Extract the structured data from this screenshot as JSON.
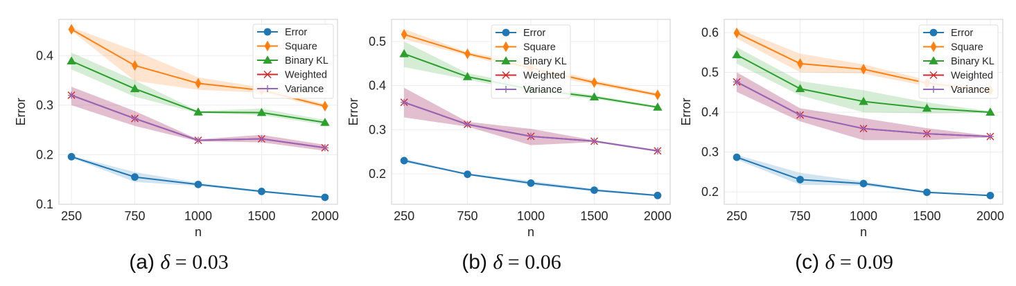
{
  "figure": {
    "panels": [
      {
        "id": "a",
        "caption_prefix": "(a)",
        "caption_symbol": "δ",
        "caption_eq": "= 0.03"
      },
      {
        "id": "b",
        "caption_prefix": "(b)",
        "caption_symbol": "δ",
        "caption_eq": "= 0.06"
      },
      {
        "id": "c",
        "caption_prefix": "(c)",
        "caption_symbol": "δ",
        "caption_eq": "= 0.09"
      }
    ]
  },
  "series_style": {
    "Error": {
      "color": "#1f77b4",
      "marker": "circle"
    },
    "Square": {
      "color": "#ff7f0e",
      "marker": "thin-diamond"
    },
    "Binary KL": {
      "color": "#2ca02c",
      "marker": "triangle"
    },
    "Weighted": {
      "color": "#d62728",
      "marker": "x"
    },
    "Variance": {
      "color": "#9467bd",
      "marker": "plus"
    }
  },
  "chart_data": [
    {
      "type": "line",
      "title": "(a) δ = 0.03",
      "xlabel": "n",
      "ylabel": "Error",
      "categories": [
        "250",
        "750",
        "1000",
        "1500",
        "2000"
      ],
      "ylim": [
        0.1,
        0.473
      ],
      "yticks": [
        0.1,
        0.2,
        0.3,
        0.4
      ],
      "ytick_labels": [
        "0.1",
        "0.2",
        "0.3",
        "0.4"
      ],
      "grid": true,
      "legend": {
        "placement": "top-right",
        "entries": [
          "Error",
          "Square",
          "Binary KL",
          "Weighted",
          "Variance"
        ]
      },
      "series": [
        {
          "name": "Error",
          "values": [
            0.196,
            0.155,
            0.14,
            0.126,
            0.114
          ],
          "band_low": [
            0.194,
            0.145,
            0.137,
            0.124,
            0.112
          ],
          "band_high": [
            0.198,
            0.165,
            0.143,
            0.128,
            0.116
          ]
        },
        {
          "name": "Square",
          "values": [
            0.453,
            0.38,
            0.344,
            0.33,
            0.298
          ],
          "band_low": [
            0.45,
            0.349,
            0.331,
            0.325,
            0.294
          ],
          "band_high": [
            0.457,
            0.41,
            0.356,
            0.336,
            0.302
          ]
        },
        {
          "name": "Binary KL",
          "values": [
            0.389,
            0.333,
            0.286,
            0.285,
            0.265
          ],
          "band_low": [
            0.372,
            0.317,
            0.284,
            0.28,
            0.26
          ],
          "band_high": [
            0.406,
            0.35,
            0.288,
            0.293,
            0.27
          ]
        },
        {
          "name": "Weighted",
          "values": [
            0.32,
            0.273,
            0.229,
            0.232,
            0.214
          ],
          "band_low": [
            0.3,
            0.258,
            0.227,
            0.225,
            0.208
          ],
          "band_high": [
            0.337,
            0.288,
            0.231,
            0.24,
            0.22
          ]
        },
        {
          "name": "Variance",
          "values": [
            0.32,
            0.273,
            0.229,
            0.232,
            0.214
          ],
          "band_low": [
            0.3,
            0.258,
            0.227,
            0.225,
            0.208
          ],
          "band_high": [
            0.337,
            0.288,
            0.231,
            0.24,
            0.22
          ]
        }
      ]
    },
    {
      "type": "line",
      "title": "(b) δ = 0.06",
      "xlabel": "n",
      "ylabel": "Error",
      "categories": [
        "250",
        "750",
        "1000",
        "1500",
        "2000"
      ],
      "ylim": [
        0.131,
        0.55
      ],
      "yticks": [
        0.2,
        0.3,
        0.4,
        0.5
      ],
      "ytick_labels": [
        "0.2",
        "0.3",
        "0.4",
        "0.5"
      ],
      "grid": true,
      "legend": {
        "placement": "top-center",
        "entries": [
          "Error",
          "Square",
          "Binary KL",
          "Weighted",
          "Variance"
        ]
      },
      "series": [
        {
          "name": "Error",
          "values": [
            0.23,
            0.199,
            0.179,
            0.163,
            0.151
          ],
          "band_low": [
            0.227,
            0.197,
            0.175,
            0.16,
            0.149
          ],
          "band_high": [
            0.234,
            0.201,
            0.184,
            0.166,
            0.153
          ]
        },
        {
          "name": "Square",
          "values": [
            0.516,
            0.472,
            0.44,
            0.407,
            0.379
          ],
          "band_low": [
            0.505,
            0.468,
            0.43,
            0.402,
            0.375
          ],
          "band_high": [
            0.528,
            0.476,
            0.45,
            0.412,
            0.383
          ]
        },
        {
          "name": "Binary KL",
          "values": [
            0.472,
            0.42,
            0.392,
            0.374,
            0.351
          ],
          "band_low": [
            0.442,
            0.414,
            0.384,
            0.37,
            0.348
          ],
          "band_high": [
            0.5,
            0.428,
            0.4,
            0.378,
            0.354
          ]
        },
        {
          "name": "Weighted",
          "values": [
            0.362,
            0.312,
            0.285,
            0.274,
            0.252
          ],
          "band_low": [
            0.328,
            0.307,
            0.265,
            0.272,
            0.25
          ],
          "band_high": [
            0.395,
            0.318,
            0.302,
            0.276,
            0.254
          ]
        },
        {
          "name": "Variance",
          "values": [
            0.362,
            0.312,
            0.285,
            0.274,
            0.252
          ],
          "band_low": [
            0.328,
            0.307,
            0.265,
            0.272,
            0.25
          ],
          "band_high": [
            0.395,
            0.318,
            0.302,
            0.276,
            0.254
          ]
        }
      ]
    },
    {
      "type": "line",
      "title": "(c) δ = 0.09",
      "xlabel": "n",
      "ylabel": "Error",
      "categories": [
        "250",
        "750",
        "1000",
        "1500",
        "2000"
      ],
      "ylim": [
        0.169,
        0.633
      ],
      "yticks": [
        0.2,
        0.3,
        0.4,
        0.5,
        0.6
      ],
      "ytick_labels": [
        "0.2",
        "0.3",
        "0.4",
        "0.5",
        "0.6"
      ],
      "grid": true,
      "legend": {
        "placement": "top-right",
        "entries": [
          "Error",
          "Square",
          "Binary KL",
          "Weighted",
          "Variance"
        ]
      },
      "series": [
        {
          "name": "Error",
          "values": [
            0.287,
            0.231,
            0.221,
            0.199,
            0.191
          ],
          "band_low": [
            0.281,
            0.218,
            0.216,
            0.197,
            0.189
          ],
          "band_high": [
            0.293,
            0.248,
            0.226,
            0.201,
            0.193
          ]
        },
        {
          "name": "Square",
          "values": [
            0.599,
            0.522,
            0.508,
            0.473,
            0.455
          ],
          "band_low": [
            0.585,
            0.5,
            0.497,
            0.465,
            0.45
          ],
          "band_high": [
            0.61,
            0.547,
            0.52,
            0.481,
            0.46
          ]
        },
        {
          "name": "Binary KL",
          "values": [
            0.544,
            0.459,
            0.427,
            0.41,
            0.4
          ],
          "band_low": [
            0.522,
            0.442,
            0.4,
            0.397,
            0.398
          ],
          "band_high": [
            0.563,
            0.478,
            0.455,
            0.425,
            0.402
          ]
        },
        {
          "name": "Weighted",
          "values": [
            0.476,
            0.393,
            0.359,
            0.346,
            0.339
          ],
          "band_low": [
            0.451,
            0.377,
            0.33,
            0.33,
            0.337
          ],
          "band_high": [
            0.5,
            0.41,
            0.385,
            0.36,
            0.341
          ]
        },
        {
          "name": "Variance",
          "values": [
            0.476,
            0.393,
            0.359,
            0.346,
            0.339
          ],
          "band_low": [
            0.451,
            0.377,
            0.33,
            0.33,
            0.337
          ],
          "band_high": [
            0.5,
            0.41,
            0.385,
            0.36,
            0.341
          ]
        }
      ]
    }
  ]
}
